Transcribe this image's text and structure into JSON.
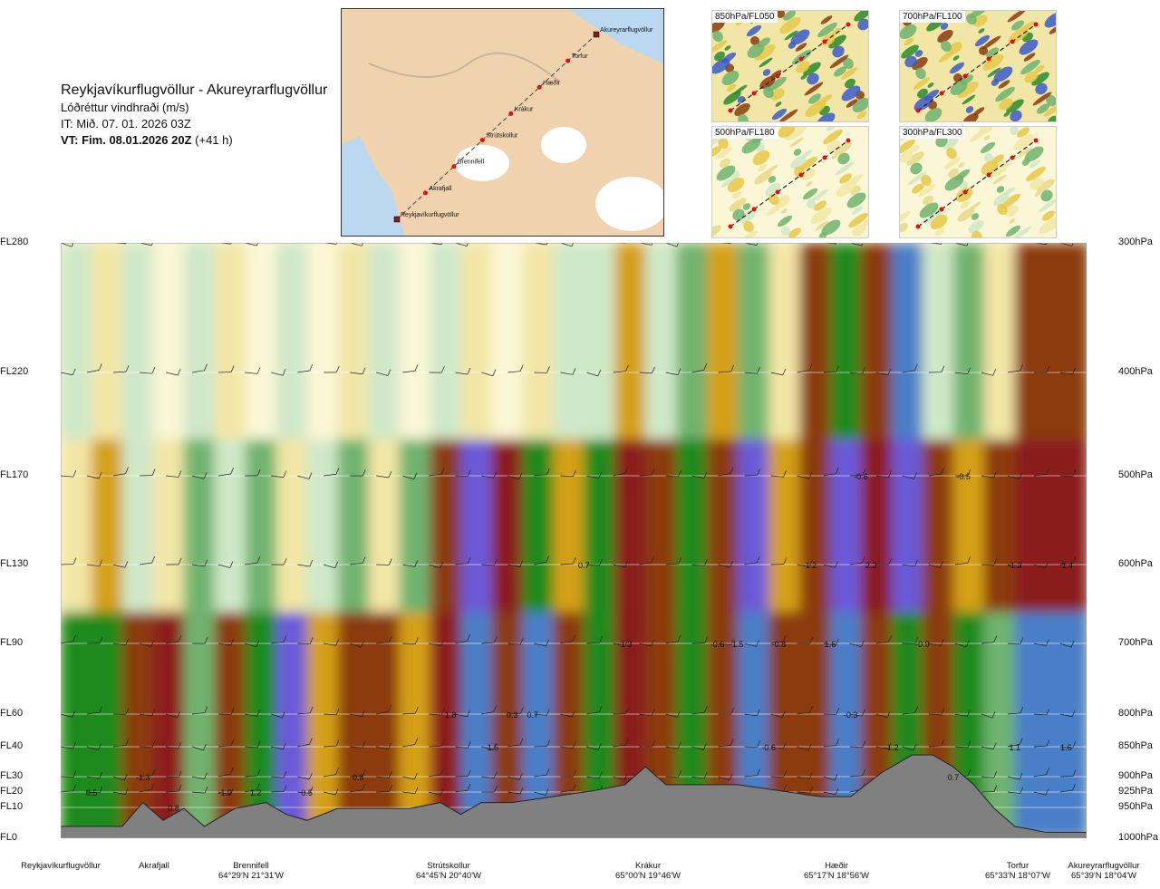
{
  "header": {
    "title": "Reykjavíkurflugvöllur - Akureyrarflugvöllur",
    "subtitle": "Lóðréttur vindhraði (m/s)",
    "issue_time": "IT: Mið. 07. 01. 2026 03Z",
    "valid_time_bold": "VT: Fim. 08.01.2026 20Z",
    "valid_time_offset": "(+41 h)"
  },
  "map": {
    "route_labels": [
      "Akureyrarflugvöllur",
      "Torfur",
      "Hæðir",
      "Krákur",
      "Strútskollur",
      "Brennifell",
      "Akrafjall",
      "Reykjavíkurflugvöllur"
    ]
  },
  "thumbnails": [
    {
      "label": "850hPa/FL050"
    },
    {
      "label": "700hPa/FL100"
    },
    {
      "label": "500hPa/FL180"
    },
    {
      "label": "300hPa/FL300"
    }
  ],
  "colors": {
    "strong_down": "#8b1a1a",
    "down": "#8b3a0f",
    "weak_down": "#d4a017",
    "slight_down": "#f2e6a6",
    "neutral": "#fbf7d6",
    "slight_up": "#cfe8c8",
    "weak_up": "#6fb36f",
    "up": "#1e8a1e",
    "strong_up": "#4a7fc8",
    "very_strong_up": "#6a5ad8",
    "terrain": "#808080"
  },
  "chart_data": {
    "type": "heatmap",
    "title": "Lóðréttur vindhraði (m/s)",
    "y_left_ticks": [
      "FL280",
      "FL220",
      "FL170",
      "FL130",
      "FL90",
      "FL60",
      "FL40",
      "FL30",
      "FL20",
      "FL10",
      "FL0"
    ],
    "y_right_ticks": [
      "300hPa",
      "400hPa",
      "500hPa",
      "600hPa",
      "700hPa",
      "800hPa",
      "850hPa",
      "900hPa",
      "925hPa",
      "950hPa",
      "1000hPa"
    ],
    "x_points": [
      {
        "name": "Reykjavíkurflugvöllur",
        "coord": ""
      },
      {
        "name": "Akrafjall",
        "coord": ""
      },
      {
        "name": "Brennifell",
        "coord": "64°29'N 21°31'W"
      },
      {
        "name": "Strútskollur",
        "coord": "64°45'N 20°40'W"
      },
      {
        "name": "Krákur",
        "coord": "65°00'N 19°46'W"
      },
      {
        "name": "Hæðir",
        "coord": "65°17'N 18°56'W"
      },
      {
        "name": "Torfur",
        "coord": "65°33'N 18°07'W"
      },
      {
        "name": "Akureyrarflugvöllur",
        "coord": "65°39'N 18°04'W"
      }
    ],
    "annotations": [
      {
        "text": "-0.6",
        "level": "500hPa",
        "frac": 0.78
      },
      {
        "text": "-0.5",
        "level": "500hPa",
        "frac": 0.88
      },
      {
        "text": "0.7",
        "level": "600hPa",
        "frac": 0.51
      },
      {
        "text": "-1.2",
        "level": "600hPa",
        "frac": 0.73
      },
      {
        "text": "2.3",
        "level": "600hPa",
        "frac": 0.79
      },
      {
        "text": "-1.3",
        "level": "600hPa",
        "frac": 0.93
      },
      {
        "text": "-1.4",
        "level": "600hPa",
        "frac": 0.98
      },
      {
        "text": "-1.3",
        "level": "700hPa",
        "frac": 0.55
      },
      {
        "text": "-0.6",
        "level": "700hPa",
        "frac": 0.64
      },
      {
        "text": "1.5",
        "level": "700hPa",
        "frac": 0.66
      },
      {
        "text": "-0.8",
        "level": "700hPa",
        "frac": 0.7
      },
      {
        "text": "1.6",
        "level": "700hPa",
        "frac": 0.75
      },
      {
        "text": "-0.9",
        "level": "700hPa",
        "frac": 0.84
      },
      {
        "text": "1.8",
        "level": "800hPa",
        "frac": 0.38
      },
      {
        "text": "0.3",
        "level": "800hPa",
        "frac": 0.44
      },
      {
        "text": "0.7",
        "level": "800hPa",
        "frac": 0.46
      },
      {
        "text": "-0.3",
        "level": "800hPa",
        "frac": 0.77
      },
      {
        "text": "-1.5",
        "level": "850hPa",
        "frac": 0.42
      },
      {
        "text": "-0.6",
        "level": "850hPa",
        "frac": 0.69
      },
      {
        "text": "-1.2",
        "level": "850hPa",
        "frac": 0.81
      },
      {
        "text": "1.1",
        "level": "850hPa",
        "frac": 0.93
      },
      {
        "text": "1.6",
        "level": "850hPa",
        "frac": 0.98
      },
      {
        "text": "-1.3",
        "level": "900hPa",
        "frac": 0.08
      },
      {
        "text": "0.8",
        "level": "900hPa",
        "frac": 0.29
      },
      {
        "text": "0.7",
        "level": "900hPa",
        "frac": 0.87
      },
      {
        "text": "0.5",
        "level": "925hPa",
        "frac": 0.03
      },
      {
        "text": "-1.9",
        "level": "925hPa",
        "frac": 0.16
      },
      {
        "text": "1.2",
        "level": "925hPa",
        "frac": 0.19
      },
      {
        "text": "0.5",
        "level": "925hPa",
        "frac": 0.24
      },
      {
        "text": "0.8",
        "level": "950hPa",
        "frac": 0.11
      }
    ],
    "color_order": [
      "strong_down",
      "down",
      "weak_down",
      "slight_down",
      "neutral",
      "slight_up",
      "weak_up",
      "up",
      "strong_up",
      "very_strong_up"
    ],
    "columns": [
      {
        "x": 0.0,
        "w": 0.03,
        "top": "slight_up",
        "mid": "slight_down",
        "low": "up"
      },
      {
        "x": 0.03,
        "w": 0.03,
        "top": "slight_down",
        "mid": "weak_down",
        "low": "up"
      },
      {
        "x": 0.06,
        "w": 0.03,
        "top": "slight_up",
        "mid": "slight_up",
        "low": "down"
      },
      {
        "x": 0.09,
        "w": 0.03,
        "top": "neutral",
        "mid": "slight_down",
        "low": "strong_down"
      },
      {
        "x": 0.12,
        "w": 0.03,
        "top": "slight_up",
        "mid": "weak_up",
        "low": "weak_up"
      },
      {
        "x": 0.15,
        "w": 0.03,
        "top": "slight_down",
        "mid": "slight_up",
        "low": "down"
      },
      {
        "x": 0.18,
        "w": 0.03,
        "top": "neutral",
        "mid": "weak_up",
        "low": "up"
      },
      {
        "x": 0.21,
        "w": 0.03,
        "top": "slight_up",
        "mid": "slight_down",
        "low": "very_strong_up"
      },
      {
        "x": 0.24,
        "w": 0.03,
        "top": "neutral",
        "mid": "slight_up",
        "low": "weak_down"
      },
      {
        "x": 0.27,
        "w": 0.03,
        "top": "slight_down",
        "mid": "weak_up",
        "low": "down"
      },
      {
        "x": 0.3,
        "w": 0.03,
        "top": "slight_up",
        "mid": "slight_down",
        "low": "down"
      },
      {
        "x": 0.33,
        "w": 0.03,
        "top": "neutral",
        "mid": "weak_up",
        "low": "weak_down"
      },
      {
        "x": 0.36,
        "w": 0.03,
        "top": "slight_up",
        "mid": "down",
        "low": "strong_down"
      },
      {
        "x": 0.39,
        "w": 0.03,
        "top": "slight_down",
        "mid": "very_strong_up",
        "low": "strong_up"
      },
      {
        "x": 0.42,
        "w": 0.03,
        "top": "neutral",
        "mid": "strong_down",
        "low": "down"
      },
      {
        "x": 0.45,
        "w": 0.03,
        "top": "slight_down",
        "mid": "up",
        "low": "strong_up"
      },
      {
        "x": 0.48,
        "w": 0.03,
        "top": "slight_up",
        "mid": "weak_down",
        "low": "down"
      },
      {
        "x": 0.51,
        "w": 0.03,
        "top": "slight_up",
        "mid": "up",
        "low": "up"
      },
      {
        "x": 0.54,
        "w": 0.03,
        "top": "weak_down",
        "mid": "strong_down",
        "low": "strong_down"
      },
      {
        "x": 0.57,
        "w": 0.03,
        "top": "slight_up",
        "mid": "down",
        "low": "down"
      },
      {
        "x": 0.6,
        "w": 0.03,
        "top": "weak_up",
        "mid": "up",
        "low": "up"
      },
      {
        "x": 0.63,
        "w": 0.03,
        "top": "weak_down",
        "mid": "down",
        "low": "down"
      },
      {
        "x": 0.66,
        "w": 0.03,
        "top": "weak_up",
        "mid": "very_strong_up",
        "low": "strong_up"
      },
      {
        "x": 0.69,
        "w": 0.03,
        "top": "slight_down",
        "mid": "weak_down",
        "low": "down"
      },
      {
        "x": 0.72,
        "w": 0.03,
        "top": "down",
        "mid": "down",
        "low": "down"
      },
      {
        "x": 0.75,
        "w": 0.03,
        "top": "up",
        "mid": "very_strong_up",
        "low": "strong_up"
      },
      {
        "x": 0.78,
        "w": 0.03,
        "top": "down",
        "mid": "strong_down",
        "low": "down"
      },
      {
        "x": 0.81,
        "w": 0.03,
        "top": "strong_up",
        "mid": "very_strong_up",
        "low": "up"
      },
      {
        "x": 0.84,
        "w": 0.03,
        "top": "slight_up",
        "mid": "down",
        "low": "down"
      },
      {
        "x": 0.87,
        "w": 0.03,
        "top": "weak_up",
        "mid": "weak_down",
        "low": "up"
      },
      {
        "x": 0.9,
        "w": 0.03,
        "top": "slight_down",
        "mid": "down",
        "low": "weak_up"
      },
      {
        "x": 0.93,
        "w": 0.04,
        "top": "down",
        "mid": "strong_down",
        "low": "strong_up"
      },
      {
        "x": 0.97,
        "w": 0.03,
        "top": "down",
        "mid": "strong_down",
        "low": "strong_up"
      }
    ],
    "terrain_profile": [
      [
        0.0,
        0.02
      ],
      [
        0.06,
        0.02
      ],
      [
        0.08,
        0.06
      ],
      [
        0.1,
        0.03
      ],
      [
        0.12,
        0.05
      ],
      [
        0.14,
        0.02
      ],
      [
        0.17,
        0.05
      ],
      [
        0.2,
        0.06
      ],
      [
        0.22,
        0.04
      ],
      [
        0.24,
        0.03
      ],
      [
        0.27,
        0.05
      ],
      [
        0.3,
        0.05
      ],
      [
        0.34,
        0.05
      ],
      [
        0.37,
        0.06
      ],
      [
        0.39,
        0.04
      ],
      [
        0.41,
        0.06
      ],
      [
        0.44,
        0.06
      ],
      [
        0.48,
        0.07
      ],
      [
        0.52,
        0.08
      ],
      [
        0.55,
        0.09
      ],
      [
        0.57,
        0.12
      ],
      [
        0.59,
        0.09
      ],
      [
        0.62,
        0.09
      ],
      [
        0.66,
        0.09
      ],
      [
        0.7,
        0.08
      ],
      [
        0.74,
        0.07
      ],
      [
        0.77,
        0.07
      ],
      [
        0.8,
        0.11
      ],
      [
        0.83,
        0.14
      ],
      [
        0.85,
        0.14
      ],
      [
        0.87,
        0.12
      ],
      [
        0.89,
        0.09
      ],
      [
        0.91,
        0.05
      ],
      [
        0.93,
        0.02
      ],
      [
        0.96,
        0.01
      ],
      [
        1.0,
        0.01
      ]
    ]
  }
}
